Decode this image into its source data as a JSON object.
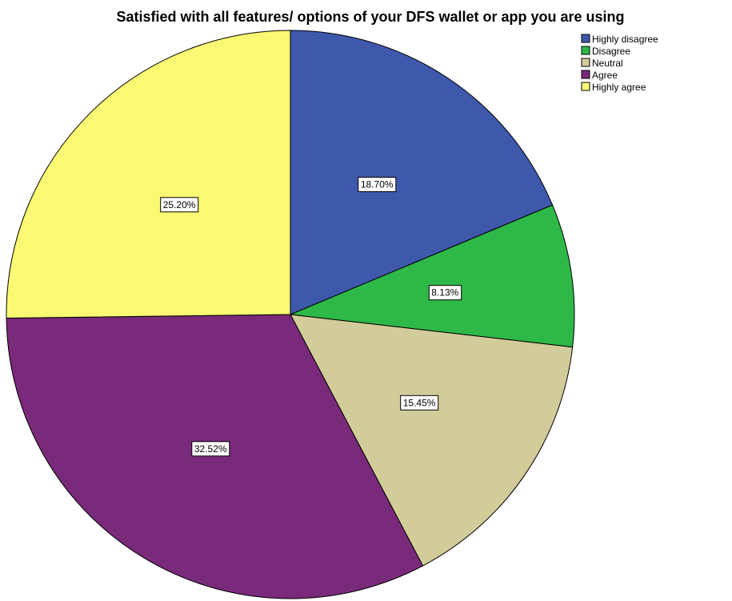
{
  "chart_data": {
    "type": "pie",
    "title": "Satisfied with all features/ options of your DFS wallet or app you are using",
    "legend_position": "top-right",
    "categories": [
      "Highly disagree",
      "Disagree",
      "Neutral",
      "Agree",
      "Highly agree"
    ],
    "values": [
      18.7,
      8.13,
      15.45,
      32.52,
      25.2
    ],
    "labels": [
      "18.70%",
      "8.13%",
      "15.45%",
      "32.52%",
      "25.20%"
    ],
    "colors": [
      "#3e58ac",
      "#2eb848",
      "#d2cc9a",
      "#7a2a7a",
      "#fbf873"
    ]
  }
}
